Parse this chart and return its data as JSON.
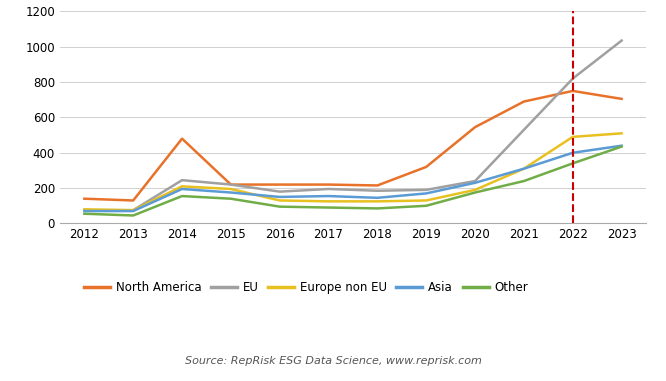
{
  "years": [
    2012,
    2013,
    2014,
    2015,
    2016,
    2017,
    2018,
    2019,
    2020,
    2021,
    2022,
    2023
  ],
  "series": {
    "North America": [
      140,
      130,
      480,
      220,
      220,
      220,
      215,
      320,
      545,
      690,
      750,
      705
    ],
    "EU": [
      75,
      75,
      245,
      220,
      180,
      195,
      185,
      190,
      240,
      530,
      820,
      1035
    ],
    "Europe non EU": [
      80,
      75,
      210,
      195,
      130,
      125,
      125,
      130,
      190,
      310,
      490,
      510
    ],
    "Asia": [
      70,
      70,
      195,
      175,
      150,
      155,
      145,
      170,
      230,
      310,
      400,
      440
    ],
    "Other": [
      55,
      45,
      155,
      140,
      95,
      90,
      85,
      100,
      175,
      240,
      340,
      435
    ]
  },
  "colors": {
    "North America": "#E8722A",
    "EU": "#A0A0A0",
    "Europe non EU": "#E8C020",
    "Asia": "#5B9BD5",
    "Other": "#70AD47"
  },
  "ylim": [
    0,
    1200
  ],
  "yticks": [
    0,
    200,
    400,
    600,
    800,
    1000,
    1200
  ],
  "dashed_vline_x": 2022,
  "dashed_vline_color": "#CC0000",
  "source_text": "Source: RepRisk ESG Data Science, www.reprisk.com",
  "background_color": "#FFFFFF",
  "grid_color": "#D0D0D0",
  "legend_order": [
    "North America",
    "EU",
    "Europe non EU",
    "Asia",
    "Other"
  ]
}
